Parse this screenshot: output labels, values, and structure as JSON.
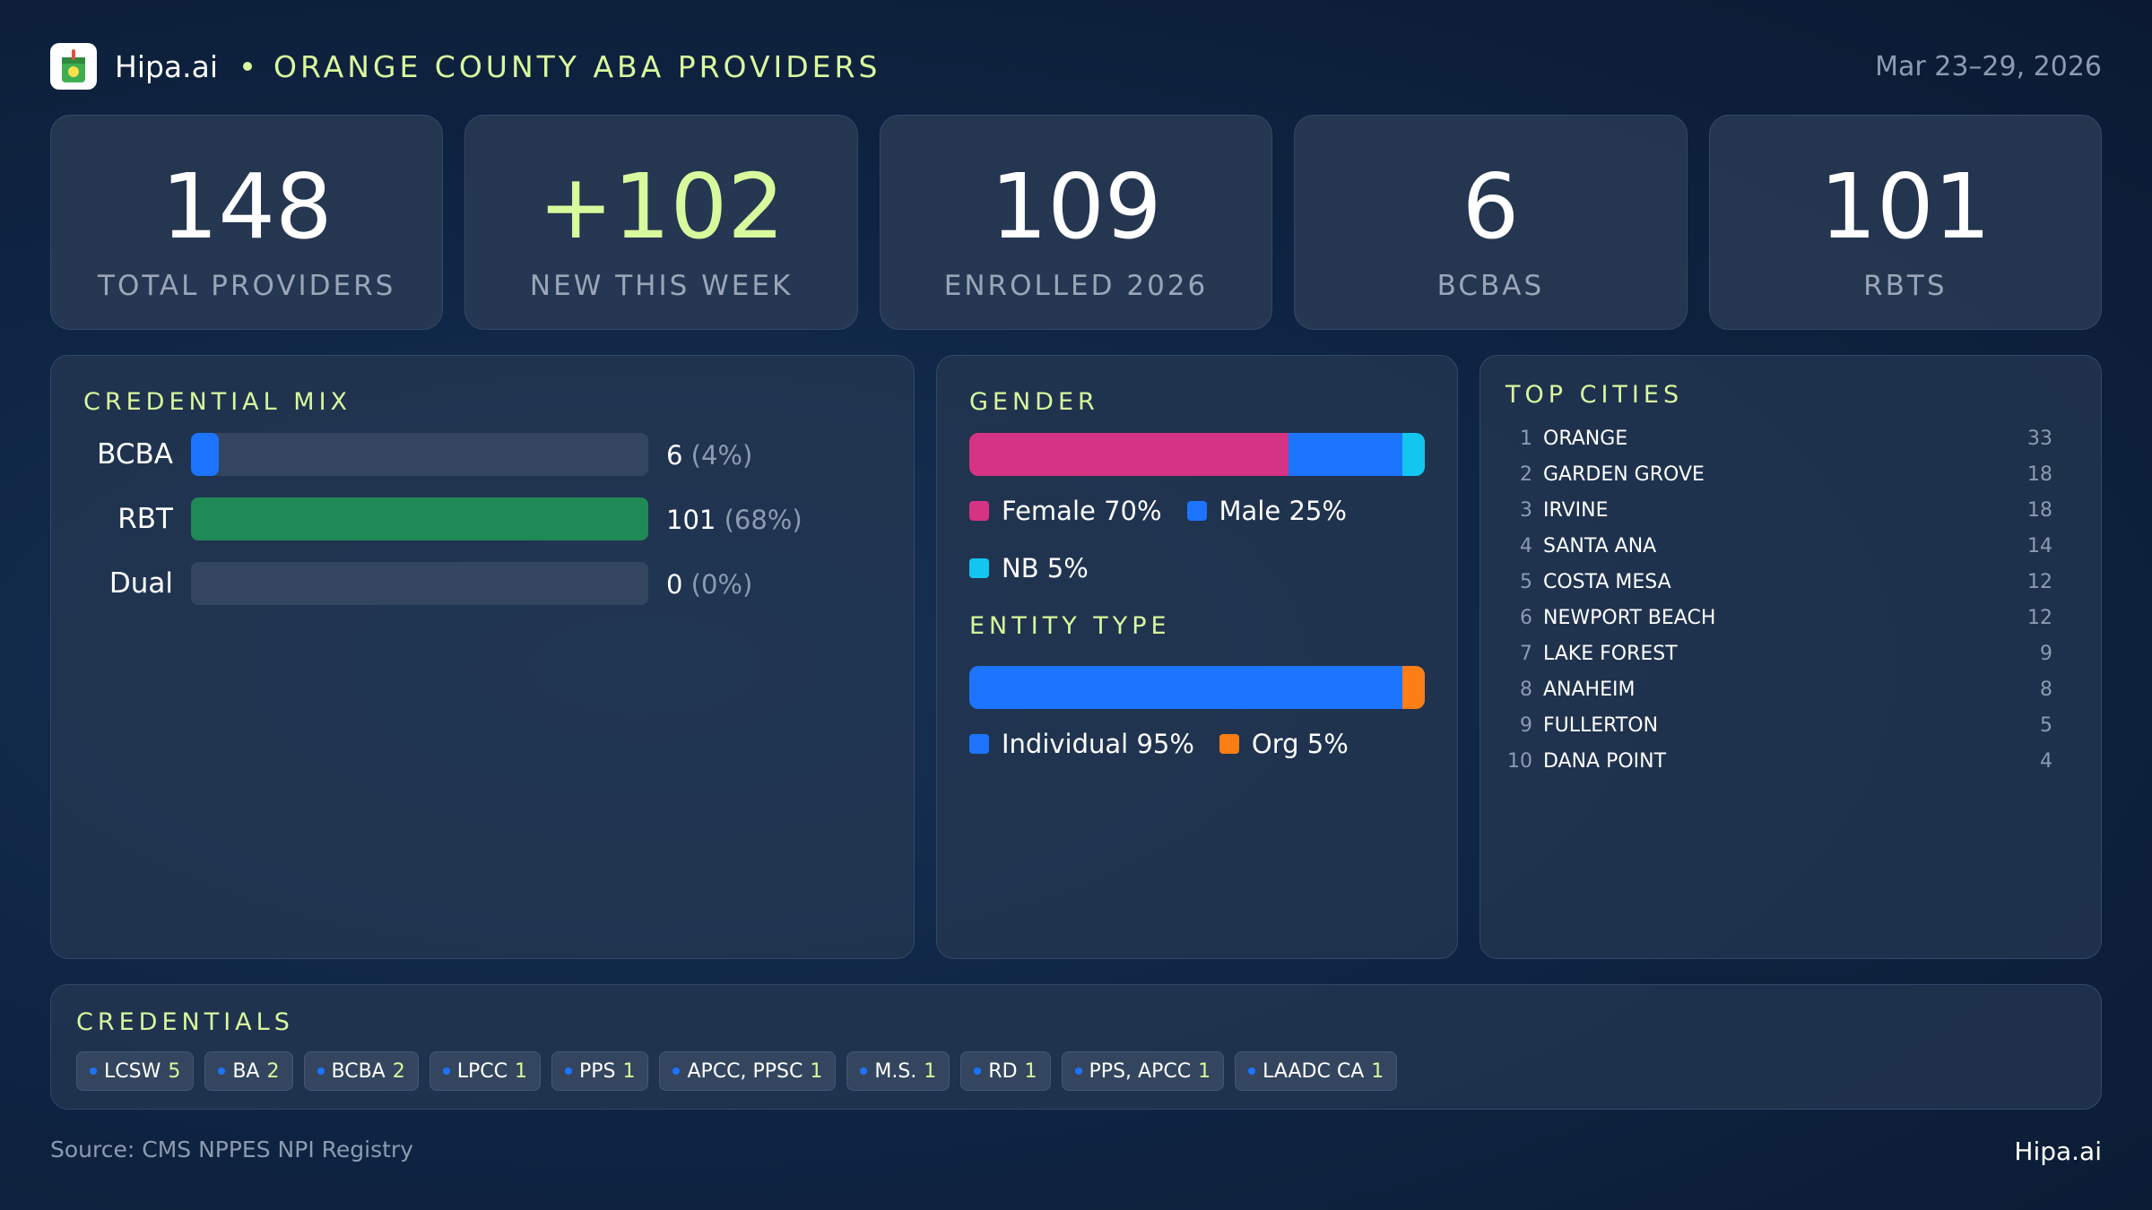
{
  "header": {
    "brand": "Hipa.ai",
    "title": "ORANGE COUNTY ABA PROVIDERS",
    "date_range": "Mar 23–29, 2026",
    "logo_icon": "drink-cup-icon"
  },
  "kpis": [
    {
      "value": "148",
      "label": "TOTAL PROVIDERS"
    },
    {
      "value": "+102",
      "label": "NEW THIS WEEK"
    },
    {
      "value": "109",
      "label": "ENROLLED 2026"
    },
    {
      "value": "6",
      "label": "BCBAS"
    },
    {
      "value": "101",
      "label": "RBTS"
    }
  ],
  "credential_mix": {
    "title": "CREDENTIAL MIX",
    "rows": [
      {
        "label": "BCBA",
        "count": "6",
        "pct": "(4%)",
        "fraction": 0.06,
        "color": "#1c74ff"
      },
      {
        "label": "RBT",
        "count": "101",
        "pct": "(68%)",
        "fraction": 1.0,
        "color": "#1f8a55"
      },
      {
        "label": "Dual",
        "count": "0",
        "pct": "(0%)",
        "fraction": 0.0,
        "color": "#1c74ff"
      }
    ]
  },
  "gender": {
    "title": "GENDER",
    "segments": [
      {
        "label": "Female 70%",
        "share": 70,
        "color": "#d63384"
      },
      {
        "label": "Male 25%",
        "share": 25,
        "color": "#1c74ff"
      },
      {
        "label": "NB 5%",
        "share": 5,
        "color": "#12c6f0"
      }
    ]
  },
  "entity_type": {
    "title": "ENTITY TYPE",
    "segments": [
      {
        "label": "Individual 95%",
        "share": 95,
        "color": "#1c74ff"
      },
      {
        "label": "Org 5%",
        "share": 5,
        "color": "#fd7e14"
      }
    ]
  },
  "top_cities": {
    "title": "TOP CITIES",
    "cities": [
      {
        "rank": "1",
        "name": "ORANGE",
        "count": "33"
      },
      {
        "rank": "2",
        "name": "GARDEN GROVE",
        "count": "18"
      },
      {
        "rank": "3",
        "name": "IRVINE",
        "count": "18"
      },
      {
        "rank": "4",
        "name": "SANTA ANA",
        "count": "14"
      },
      {
        "rank": "5",
        "name": "COSTA MESA",
        "count": "12"
      },
      {
        "rank": "6",
        "name": "NEWPORT BEACH",
        "count": "12"
      },
      {
        "rank": "7",
        "name": "LAKE FOREST",
        "count": "9"
      },
      {
        "rank": "8",
        "name": "ANAHEIM",
        "count": "8"
      },
      {
        "rank": "9",
        "name": "FULLERTON",
        "count": "5"
      },
      {
        "rank": "10",
        "name": "DANA POINT",
        "count": "4"
      }
    ]
  },
  "credentials": {
    "title": "CREDENTIALS",
    "chips": [
      {
        "name": "LCSW",
        "count": "5"
      },
      {
        "name": "BA",
        "count": "2"
      },
      {
        "name": "BCBA",
        "count": "2"
      },
      {
        "name": "LPCC",
        "count": "1"
      },
      {
        "name": "PPS",
        "count": "1"
      },
      {
        "name": "APCC, PPSC",
        "count": "1"
      },
      {
        "name": "M.S.",
        "count": "1"
      },
      {
        "name": "RD",
        "count": "1"
      },
      {
        "name": "PPS, APCC",
        "count": "1"
      },
      {
        "name": "LAADC CA",
        "count": "1"
      }
    ]
  },
  "footer": {
    "source": "Source: CMS NPPES NPI Registry",
    "brand": "Hipa.ai"
  }
}
